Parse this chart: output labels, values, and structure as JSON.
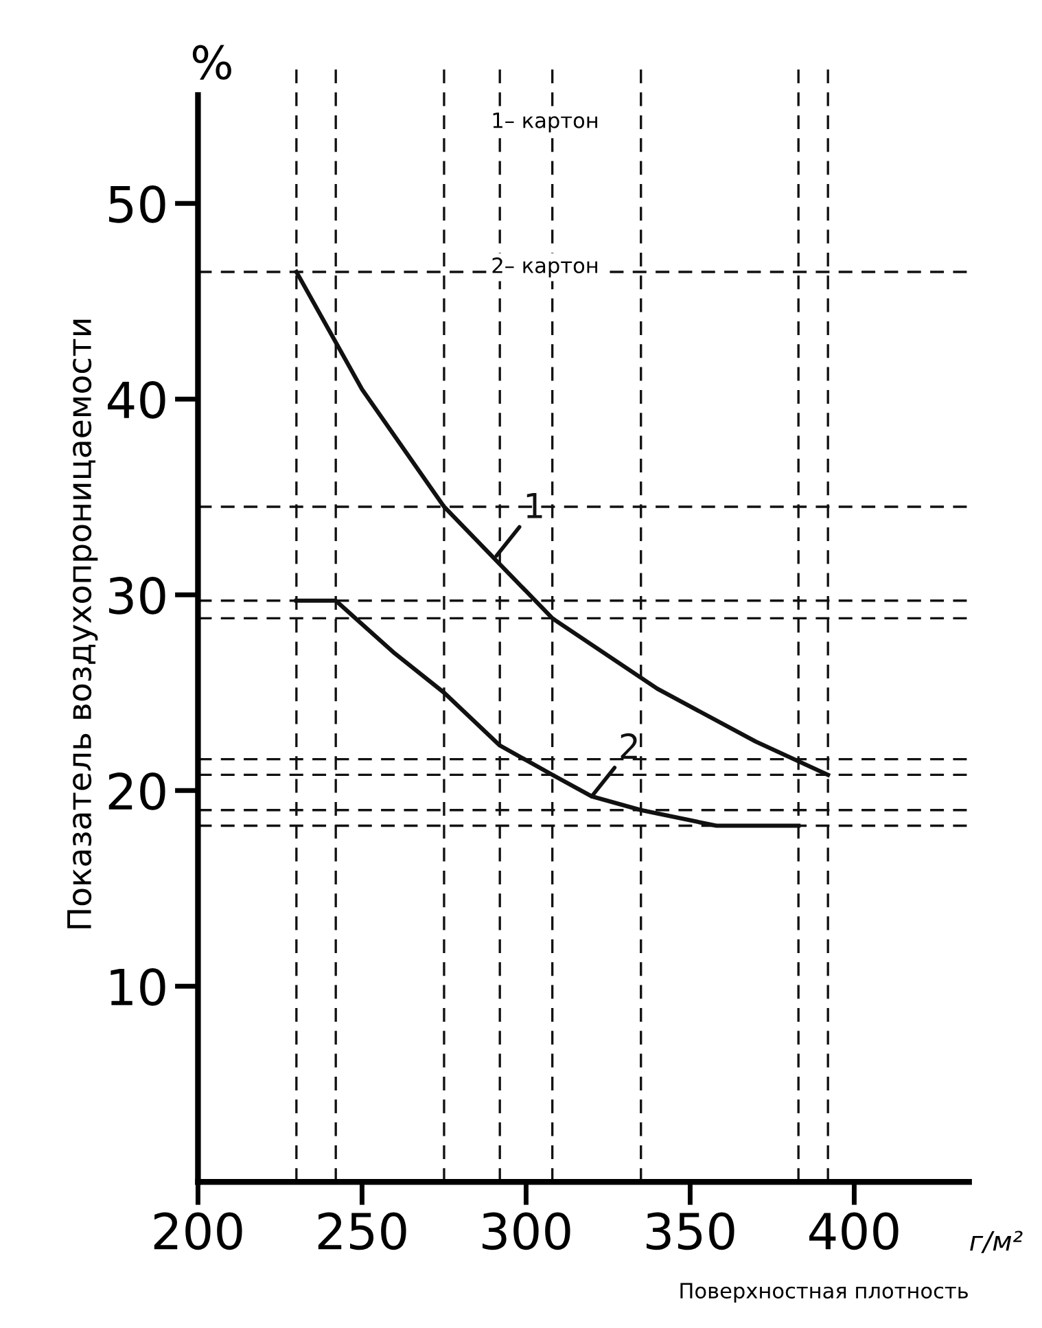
{
  "chart_data": {
    "type": "line",
    "xlabel": "Поверхностная плотность",
    "ylabel": "Показатель воздухопроницаемости",
    "annotations": [
      "%",
      "г/м²",
      "1– картон",
      "2– картон"
    ],
    "series": [
      {
        "name": "1",
        "color": "#111111",
        "x": [
          230,
          250,
          275,
          308,
          340,
          370,
          392
        ],
        "values": [
          46.5,
          40.5,
          34.5,
          28.8,
          25.2,
          22.5,
          20.8
        ]
      },
      {
        "name": "2",
        "color": "#111111",
        "x": [
          230,
          242,
          260,
          275,
          292,
          308,
          320,
          335,
          358,
          383
        ],
        "values": [
          29.7,
          29.7,
          27,
          25,
          22.3,
          20.8,
          19.7,
          19,
          18.2,
          18.2
        ]
      }
    ],
    "xlim": [
      200,
      435
    ],
    "ylim": [
      0,
      57
    ],
    "xticks": [
      200,
      250,
      300,
      350,
      400
    ],
    "yticks": [
      10,
      20,
      30,
      40,
      50
    ],
    "ref_lines": [
      {
        "axis": "y",
        "value": 46.5,
        "color": "#111111",
        "line_style": "dashed"
      },
      {
        "axis": "y",
        "value": 34.5,
        "color": "#111111",
        "line_style": "dashed"
      },
      {
        "axis": "y",
        "value": 29.7,
        "color": "#111111",
        "line_style": "dashed"
      },
      {
        "axis": "y",
        "value": 28.8,
        "color": "#111111",
        "line_style": "dashed"
      },
      {
        "axis": "y",
        "value": 21.6,
        "color": "#111111",
        "line_style": "dashed"
      },
      {
        "axis": "y",
        "value": 20.8,
        "color": "#111111",
        "line_style": "dashed"
      },
      {
        "axis": "y",
        "value": 19.0,
        "color": "#111111",
        "line_style": "dashed"
      },
      {
        "axis": "y",
        "value": 18.2,
        "color": "#111111",
        "line_style": "dashed"
      },
      {
        "axis": "x",
        "value": 230,
        "color": "#111111",
        "line_style": "dashed"
      },
      {
        "axis": "x",
        "value": 242,
        "color": "#111111",
        "line_style": "dashed"
      },
      {
        "axis": "x",
        "value": 275,
        "color": "#111111",
        "line_style": "dashed"
      },
      {
        "axis": "x",
        "value": 292,
        "color": "#111111",
        "line_style": "dashed"
      },
      {
        "axis": "x",
        "value": 308,
        "color": "#111111",
        "line_style": "dashed"
      },
      {
        "axis": "x",
        "value": 335,
        "color": "#111111",
        "line_style": "dashed"
      },
      {
        "axis": "x",
        "value": 383,
        "color": "#111111",
        "line_style": "dashed"
      },
      {
        "axis": "x",
        "value": 392,
        "color": "#111111",
        "line_style": "dashed"
      }
    ],
    "grid": false,
    "legend": false,
    "marker": "none",
    "line_style": "solid"
  }
}
